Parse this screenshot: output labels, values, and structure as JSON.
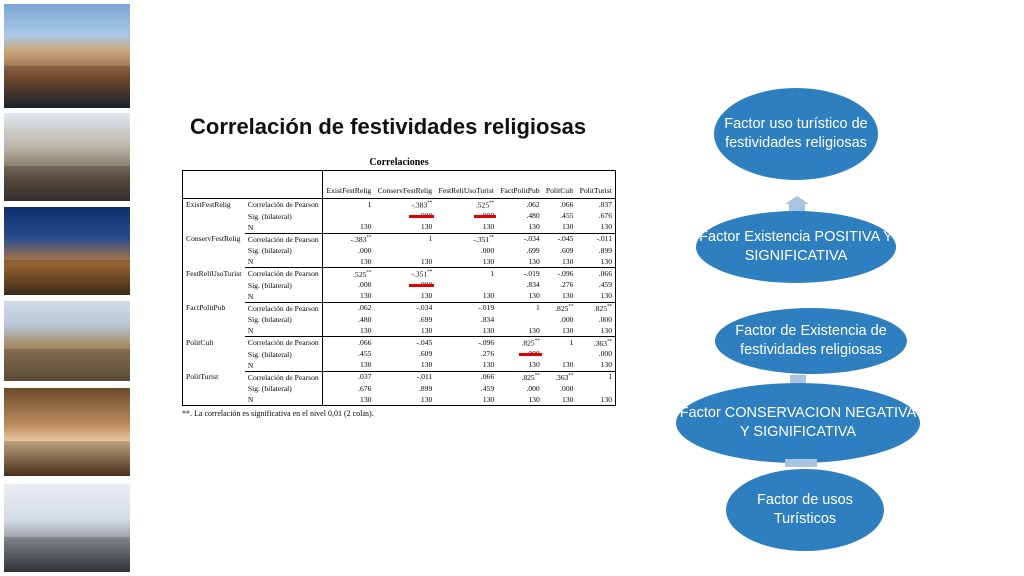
{
  "title": "Correlación de festividades religiosas",
  "photos": [
    "photo-terrace-cathedral",
    "photo-street-crowd",
    "photo-night-plaza",
    "photo-church-plaza",
    "photo-hotel-room",
    "photo-shopping-street"
  ],
  "table": {
    "caption": "Correlaciones",
    "columns": [
      "ExistFestRelig",
      "ConservFestRelig",
      "FestReliUsoTurist",
      "FactPolitPub",
      "PolitCult",
      "PolitTurist"
    ],
    "stat_labels": {
      "pearson": "Correlación de Pearson",
      "sig": "Sig. (bilateral)",
      "n": "N"
    },
    "rows": [
      {
        "name": "ExistFestRelig",
        "pearson": [
          "1",
          "-.383**",
          ".525**",
          ".062",
          ".066",
          ".037"
        ],
        "sig": [
          "",
          ".000",
          ".000",
          ".480",
          ".455",
          ".676"
        ],
        "n": [
          "130",
          "130",
          "130",
          "130",
          "130",
          "130"
        ]
      },
      {
        "name": "ConservFestRelig",
        "pearson": [
          "-.383**",
          "1",
          "-.351**",
          "-.034",
          "-.045",
          "-.011"
        ],
        "sig": [
          ".000",
          "",
          ".000",
          ".699",
          ".609",
          ".899"
        ],
        "n": [
          "130",
          "130",
          "130",
          "130",
          "130",
          "130"
        ]
      },
      {
        "name": "FestReliUsoTurist",
        "pearson": [
          ".525**",
          "-.351**",
          "1",
          "-.019",
          "-.096",
          ".066"
        ],
        "sig": [
          ".000",
          ".000",
          "",
          ".834",
          ".276",
          ".459"
        ],
        "n": [
          "130",
          "130",
          "130",
          "130",
          "130",
          "130"
        ]
      },
      {
        "name": "FactPolitPub",
        "pearson": [
          ".062",
          "-.034",
          "-.019",
          "1",
          ".825**",
          ".825**"
        ],
        "sig": [
          ".480",
          ".699",
          ".834",
          "",
          ".000",
          ".000"
        ],
        "n": [
          "130",
          "130",
          "130",
          "130",
          "130",
          "130"
        ]
      },
      {
        "name": "PolitCult",
        "pearson": [
          ".066",
          "-.045",
          "-.096",
          ".825**",
          "1",
          ".363**"
        ],
        "sig": [
          ".455",
          ".609",
          ".276",
          ".000",
          "",
          ".000"
        ],
        "n": [
          "130",
          "130",
          "130",
          "130",
          "130",
          "130"
        ]
      },
      {
        "name": "PolitTurist",
        "pearson": [
          ".037",
          "-.011",
          ".066",
          ".825**",
          ".363**",
          "1"
        ],
        "sig": [
          ".676",
          ".899",
          ".459",
          ".000",
          ".000",
          ""
        ],
        "n": [
          "130",
          "130",
          "130",
          "130",
          "130",
          "130"
        ]
      }
    ],
    "footnote": "**. La correlación es significativa en el nivel 0,01 (2 colas).",
    "highlight_color": "#e00000"
  },
  "diagram": {
    "color": "#2e7fc0",
    "connector_color": "#a9c4df",
    "nodes": [
      "Factor uso turístico de festividades religiosas",
      "Factor Existencia POSITIVA Y SIGNIFICATIVA",
      "Factor de Existencia de festividades religiosas",
      "Factor CONSERVACION NEGATIVA Y SIGNIFICATIVA",
      "Factor de usos Turísticos"
    ]
  }
}
